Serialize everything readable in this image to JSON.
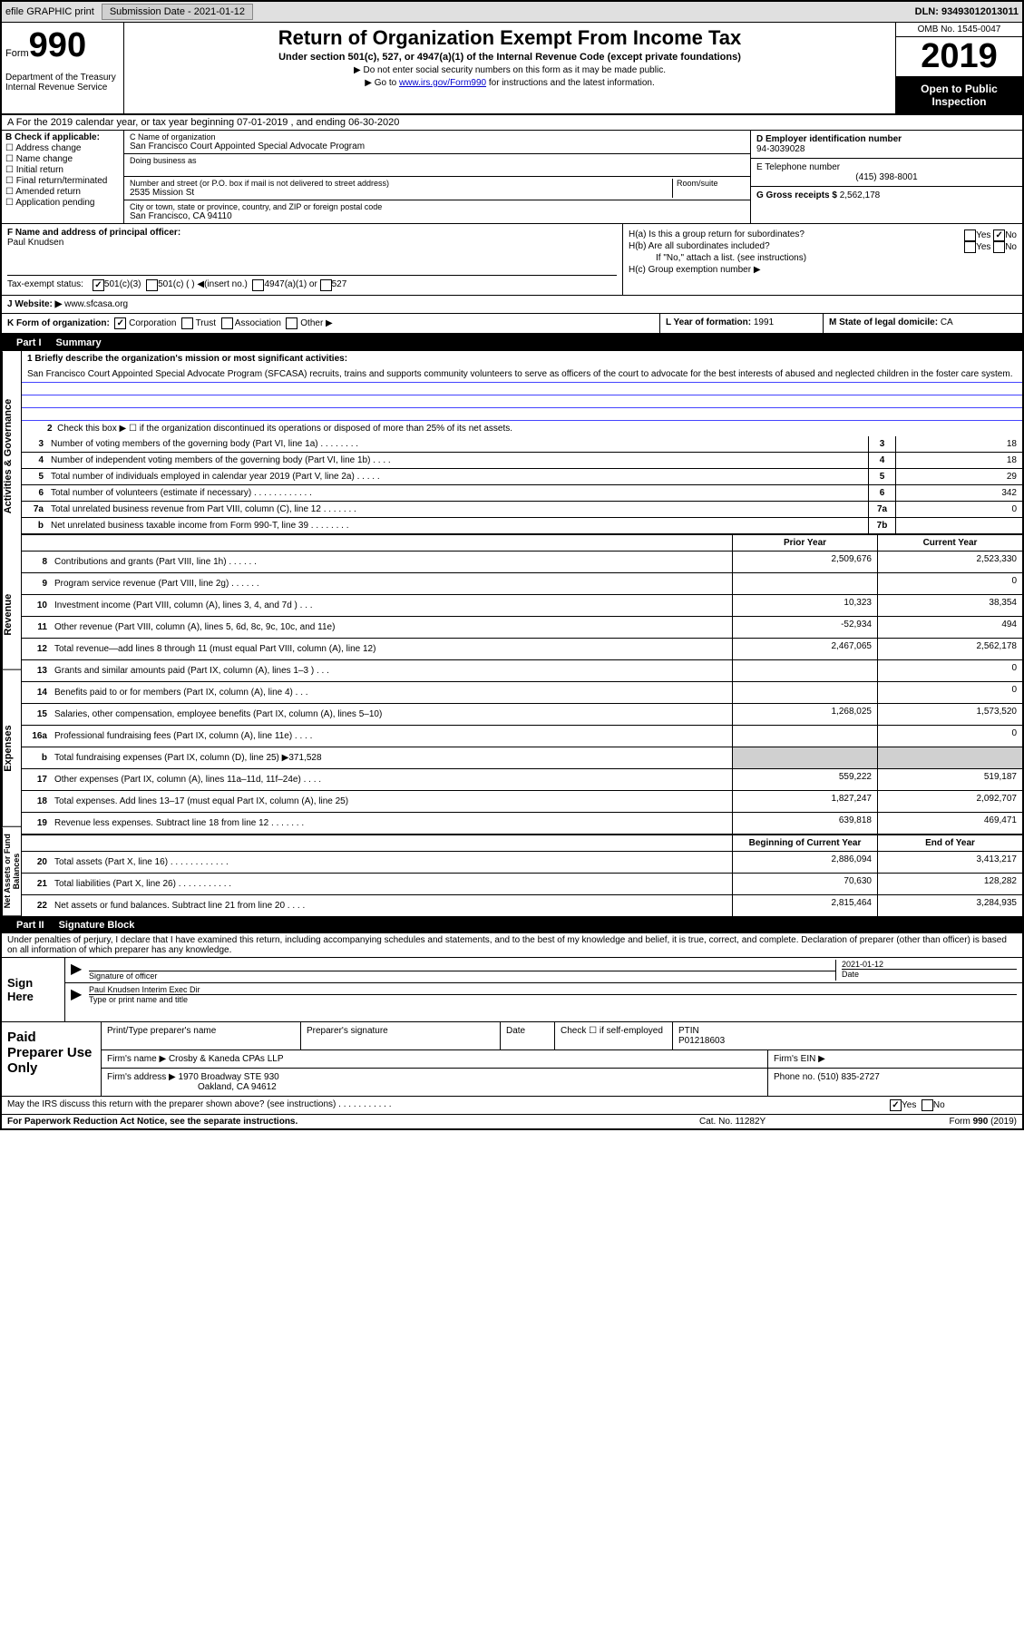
{
  "topbar": {
    "efile": "efile GRAPHIC print",
    "submission_label": "Submission Date - 2021-01-12",
    "dln": "DLN: 93493012013011"
  },
  "header": {
    "form_prefix": "Form",
    "form_number": "990",
    "department": "Department of the Treasury\nInternal Revenue Service",
    "title": "Return of Organization Exempt From Income Tax",
    "subtitle": "Under section 501(c), 527, or 4947(a)(1) of the Internal Revenue Code (except private foundations)",
    "note1": "▶ Do not enter social security numbers on this form as it may be made public.",
    "note2_prefix": "▶ Go to ",
    "note2_link": "www.irs.gov/Form990",
    "note2_suffix": " for instructions and the latest information.",
    "omb": "OMB No. 1545-0047",
    "year": "2019",
    "inspection": "Open to Public Inspection"
  },
  "sectionA": {
    "text": "A For the 2019 calendar year, or tax year beginning 07-01-2019    , and ending 06-30-2020"
  },
  "sectionB": {
    "header": "B Check if applicable:",
    "items": [
      "Address change",
      "Name change",
      "Initial return",
      "Final return/terminated",
      "Amended return",
      "Application pending"
    ],
    "c_label": "C Name of organization",
    "org_name": "San Francisco Court Appointed Special Advocate Program",
    "dba_label": "Doing business as",
    "addr_label": "Number and street (or P.O. box if mail is not delivered to street address)",
    "room_label": "Room/suite",
    "addr": "2535 Mission St",
    "city_label": "City or town, state or province, country, and ZIP or foreign postal code",
    "city": "San Francisco, CA  94110",
    "d_label": "D Employer identification number",
    "ein": "94-3039028",
    "e_label": "E Telephone number",
    "phone": "(415) 398-8001",
    "g_label": "G Gross receipts $ ",
    "gross": "2,562,178"
  },
  "sectionF": {
    "f_label": "F  Name and address of principal officer:",
    "officer": "Paul Knudsen",
    "ha": "H(a)  Is this a group return for subordinates?",
    "hb": "H(b)  Are all subordinates included?",
    "hb_note": "If \"No,\" attach a list. (see instructions)",
    "hc": "H(c)  Group exemption number ▶",
    "yes": "Yes",
    "no": "No"
  },
  "sectionI": {
    "label": "Tax-exempt status:",
    "opts": [
      "501(c)(3)",
      "501(c) (  ) ◀(insert no.)",
      "4947(a)(1) or",
      "527"
    ]
  },
  "sectionJ": {
    "label": "J  Website: ▶",
    "website": "www.sfcasa.org"
  },
  "sectionK": {
    "label": "K Form of organization:",
    "opts": [
      "Corporation",
      "Trust",
      "Association",
      "Other ▶"
    ],
    "l_label": "L Year of formation: ",
    "l_val": "1991",
    "m_label": "M State of legal domicile: ",
    "m_val": "CA"
  },
  "part1_header": {
    "part": "Part I",
    "title": "Summary"
  },
  "summary": {
    "q1_label": "1  Briefly describe the organization's mission or most significant activities:",
    "q1_text": "San Francisco Court Appointed Special Advocate Program (SFCASA) recruits, trains and supports community volunteers to serve as officers of the court to advocate for the best interests of abused and neglected children in the foster care system.",
    "q2": "Check this box ▶ ☐  if the organization discontinued its operations or disposed of more than 25% of its net assets.",
    "rows_gov": [
      {
        "n": "3",
        "t": "Number of voting members of the governing body (Part VI, line 1a)  .   .   .   .   .   .   .   .",
        "box": "3",
        "v": "18"
      },
      {
        "n": "4",
        "t": "Number of independent voting members of the governing body (Part VI, line 1b)   .   .   .   .",
        "box": "4",
        "v": "18"
      },
      {
        "n": "5",
        "t": "Total number of individuals employed in calendar year 2019 (Part V, line 2a)   .   .   .   .   .",
        "box": "5",
        "v": "29"
      },
      {
        "n": "6",
        "t": "Total number of volunteers (estimate if necessary)    .   .   .   .   .   .   .   .   .   .   .   .",
        "box": "6",
        "v": "342"
      },
      {
        "n": "7a",
        "t": "Total unrelated business revenue from Part VIII, column (C), line 12   .   .   .   .   .   .   .",
        "box": "7a",
        "v": "0"
      },
      {
        "n": "b",
        "t": "Net unrelated business taxable income from Form 990-T, line 39    .   .   .   .   .   .   .   .",
        "box": "7b",
        "v": ""
      }
    ],
    "col_prior": "Prior Year",
    "col_curr": "Current Year",
    "rows_rev": [
      {
        "n": "8",
        "t": "Contributions and grants (Part VIII, line 1h)   .   .   .   .   .   .",
        "p": "2,509,676",
        "c": "2,523,330"
      },
      {
        "n": "9",
        "t": "Program service revenue (Part VIII, line 2g)    .   .   .   .   .   .",
        "p": "",
        "c": "0"
      },
      {
        "n": "10",
        "t": "Investment income (Part VIII, column (A), lines 3, 4, and 7d )   .   .   .",
        "p": "10,323",
        "c": "38,354"
      },
      {
        "n": "11",
        "t": "Other revenue (Part VIII, column (A), lines 5, 6d, 8c, 9c, 10c, and 11e)",
        "p": "-52,934",
        "c": "494"
      },
      {
        "n": "12",
        "t": "Total revenue—add lines 8 through 11 (must equal Part VIII, column (A), line 12)",
        "p": "2,467,065",
        "c": "2,562,178"
      }
    ],
    "rows_exp": [
      {
        "n": "13",
        "t": "Grants and similar amounts paid (Part IX, column (A), lines 1–3 )  .   .   .",
        "p": "",
        "c": "0"
      },
      {
        "n": "14",
        "t": "Benefits paid to or for members (Part IX, column (A), line 4)   .   .   .",
        "p": "",
        "c": "0"
      },
      {
        "n": "15",
        "t": "Salaries, other compensation, employee benefits (Part IX, column (A), lines 5–10)",
        "p": "1,268,025",
        "c": "1,573,520"
      },
      {
        "n": "16a",
        "t": "Professional fundraising fees (Part IX, column (A), line 11e)   .   .   .   .",
        "p": "",
        "c": "0"
      },
      {
        "n": "b",
        "t": "Total fundraising expenses (Part IX, column (D), line 25) ▶371,528",
        "p": "shade",
        "c": "shade"
      },
      {
        "n": "17",
        "t": "Other expenses (Part IX, column (A), lines 11a–11d, 11f–24e)   .   .   .   .",
        "p": "559,222",
        "c": "519,187"
      },
      {
        "n": "18",
        "t": "Total expenses. Add lines 13–17 (must equal Part IX, column (A), line 25)",
        "p": "1,827,247",
        "c": "2,092,707"
      },
      {
        "n": "19",
        "t": "Revenue less expenses. Subtract line 18 from line 12 .   .   .   .   .   .   .",
        "p": "639,818",
        "c": "469,471"
      }
    ],
    "col_begin": "Beginning of Current Year",
    "col_end": "End of Year",
    "rows_net": [
      {
        "n": "20",
        "t": "Total assets (Part X, line 16)  .   .   .   .   .   .   .   .   .   .   .   .",
        "p": "2,886,094",
        "c": "3,413,217"
      },
      {
        "n": "21",
        "t": "Total liabilities (Part X, line 26)  .   .   .   .   .   .   .   .   .   .   .",
        "p": "70,630",
        "c": "128,282"
      },
      {
        "n": "22",
        "t": "Net assets or fund balances. Subtract line 21 from line 20   .   .   .   .",
        "p": "2,815,464",
        "c": "3,284,935"
      }
    ],
    "vtabs": [
      "Activities & Governance",
      "Revenue",
      "Expenses",
      "Net Assets or Fund Balances"
    ]
  },
  "part2_header": {
    "part": "Part II",
    "title": "Signature Block"
  },
  "part2": {
    "decl": "Under penalties of perjury, I declare that I have examined this return, including accompanying schedules and statements, and to the best of my knowledge and belief, it is true, correct, and complete. Declaration of preparer (other than officer) is based on all information of which preparer has any knowledge."
  },
  "sign": {
    "label": "Sign Here",
    "sig_label": "Signature of officer",
    "date_label": "Date",
    "date": "2021-01-12",
    "name": "Paul Knudsen  Interim Exec Dir",
    "name_label": "Type or print name and title"
  },
  "paid": {
    "label": "Paid Preparer Use Only",
    "h1": "Print/Type preparer's name",
    "h2": "Preparer's signature",
    "h3": "Date",
    "h4_a": "Check ☐ if self-employed",
    "h5": "PTIN",
    "ptin": "P01218603",
    "firm_label": "Firm's name    ▶ ",
    "firm": "Crosby & Kaneda CPAs LLP",
    "ein_label": "Firm's EIN ▶",
    "addr_label": "Firm's address ▶ ",
    "addr1": "1970 Broadway STE 930",
    "addr2": "Oakland, CA  94612",
    "phone_label": "Phone no. ",
    "phone": "(510) 835-2727"
  },
  "discuss": {
    "text": "May the IRS discuss this return with the preparer shown above? (see instructions)    .   .   .   .   .   .   .   .   .   .   .",
    "yes": "Yes",
    "no": "No"
  },
  "footer": {
    "left": "For Paperwork Reduction Act Notice, see the separate instructions.",
    "mid": "Cat. No. 11282Y",
    "right": "Form 990 (2019)"
  }
}
